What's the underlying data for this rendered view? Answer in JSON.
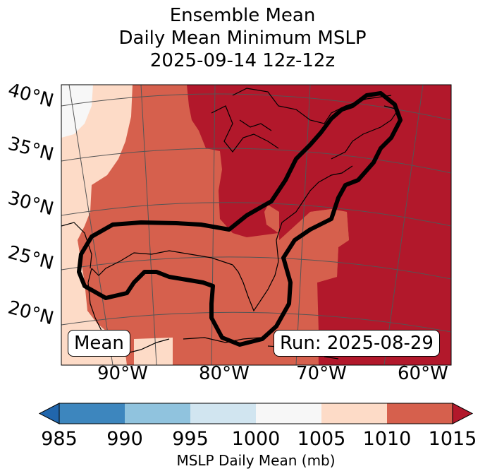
{
  "title": {
    "line1": "Ensemble Mean",
    "line2": "Daily Mean Minimum MSLP",
    "line3": "2025-09-14 12z-12z"
  },
  "map": {
    "lat_labels": [
      "40°N",
      "35°N",
      "30°N",
      "25°N",
      "20°N"
    ],
    "lon_labels": [
      "90°W",
      "80°W",
      "70°W",
      "60°W"
    ],
    "mean_tag": "Mean",
    "run_tag": "Run: 2025-08-29",
    "contour_note": "black outline of ensemble mean minimum pressure region",
    "colors": {
      "c985": "#3d86be",
      "c990": "#90c3de",
      "c995": "#d1e5f0",
      "c1000": "#f7f7f7",
      "c1005": "#fddbc7",
      "c1010": "#d6604d",
      "c1015": "#b2182b",
      "under": "#2166ac",
      "coast": "#000000",
      "grid": "#555555"
    }
  },
  "colorbar": {
    "ticks": [
      "985",
      "990",
      "995",
      "1000",
      "1005",
      "1010",
      "1015"
    ],
    "label": "MSLP Daily Mean (mb)"
  }
}
